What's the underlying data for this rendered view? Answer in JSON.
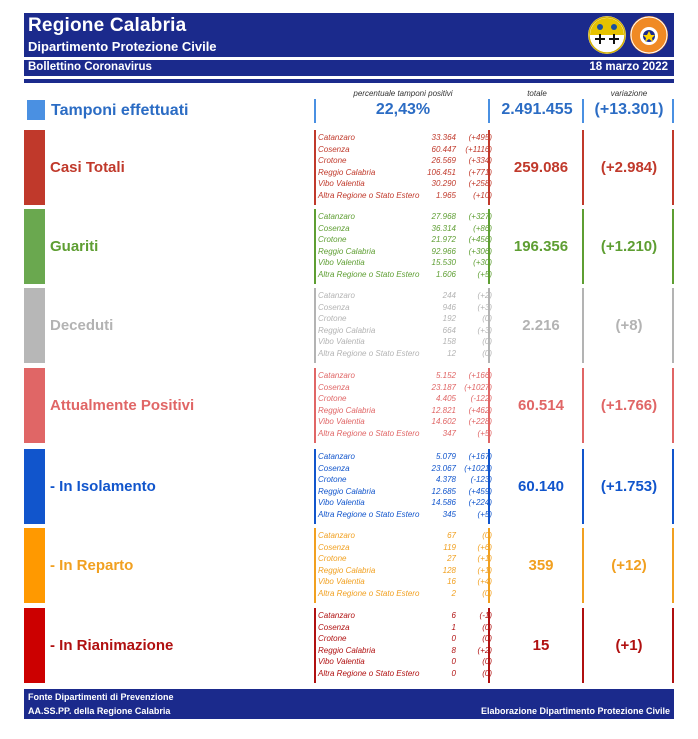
{
  "header": {
    "title": "Regione Calabria",
    "subtitle": "Dipartimento Protezione Civile",
    "bulletin": "Bollettino Coronavirus",
    "date": "18 marzo 2022",
    "logo_text": "PROTEZIONE CIVILE"
  },
  "columns": {
    "pct_label": "percentuale tamponi positivi",
    "total_label": "totale",
    "change_label": "variazione"
  },
  "tamponi": {
    "label": "Tamponi effettuati",
    "pct": "22,43%",
    "total": "2.491.455",
    "change": "(+13.301)"
  },
  "sections": [
    {
      "id": "casi",
      "label": "Casi Totali",
      "color": "#c0392b",
      "box_color": "#c0392b",
      "total": "259.086",
      "change": "(+2.984)",
      "rows": [
        {
          "prov": "Catanzaro",
          "val": "33.364",
          "var": "(+495)"
        },
        {
          "prov": "Cosenza",
          "val": "60.447",
          "var": "(+1116)"
        },
        {
          "prov": "Crotone",
          "val": "26.569",
          "var": "(+334)"
        },
        {
          "prov": "Reggio Calabria",
          "val": "106.451",
          "var": "(+771)"
        },
        {
          "prov": "Vibo Valentia",
          "val": "30.290",
          "var": "(+258)"
        },
        {
          "prov": "Altra Regione o Stato Estero",
          "val": "1.965",
          "var": "(+10)"
        }
      ]
    },
    {
      "id": "guariti",
      "label": "Guariti",
      "color": "#5e9e32",
      "box_color": "#6aa84f",
      "total": "196.356",
      "change": "(+1.210)",
      "rows": [
        {
          "prov": "Catanzaro",
          "val": "27.968",
          "var": "(+327)"
        },
        {
          "prov": "Cosenza",
          "val": "36.314",
          "var": "(+86)"
        },
        {
          "prov": "Crotone",
          "val": "21.972",
          "var": "(+456)"
        },
        {
          "prov": "Reggio Calabria",
          "val": "92.966",
          "var": "(+306)"
        },
        {
          "prov": "Vibo Valentia",
          "val": "15.530",
          "var": "(+30)"
        },
        {
          "prov": "Altra Regione o Stato Estero",
          "val": "1.606",
          "var": "(+5)"
        }
      ]
    },
    {
      "id": "deceduti",
      "label": "Deceduti",
      "color": "#b3b3b3",
      "box_color": "#b7b7b7",
      "total": "2.216",
      "change": "(+8)",
      "rows": [
        {
          "prov": "Catanzaro",
          "val": "244",
          "var": "(+2)"
        },
        {
          "prov": "Cosenza",
          "val": "946",
          "var": "(+3)"
        },
        {
          "prov": "Crotone",
          "val": "192",
          "var": "(0)"
        },
        {
          "prov": "Reggio Calabria",
          "val": "664",
          "var": "(+3)"
        },
        {
          "prov": "Vibo Valentia",
          "val": "158",
          "var": "(0)"
        },
        {
          "prov": "Altra Regione o Stato Estero",
          "val": "12",
          "var": "(0)"
        }
      ]
    },
    {
      "id": "attualmente",
      "label": "Attualmente Positivi",
      "color": "#e06666",
      "box_color": "#e06666",
      "total": "60.514",
      "change": "(+1.766)",
      "rows": [
        {
          "prov": "Catanzaro",
          "val": "5.152",
          "var": "(+166)"
        },
        {
          "prov": "Cosenza",
          "val": "23.187",
          "var": "(+1027)"
        },
        {
          "prov": "Crotone",
          "val": "4.405",
          "var": "(-122)"
        },
        {
          "prov": "Reggio Calabria",
          "val": "12.821",
          "var": "(+462)"
        },
        {
          "prov": "Vibo Valentia",
          "val": "14.602",
          "var": "(+228)"
        },
        {
          "prov": "Altra Regione o Stato Estero",
          "val": "347",
          "var": "(+5)"
        }
      ]
    },
    {
      "id": "isolamento",
      "label": "- In Isolamento",
      "color": "#1155cc",
      "box_color": "#1155cc",
      "total": "60.140",
      "change": "(+1.753)",
      "rows": [
        {
          "prov": "Catanzaro",
          "val": "5.079",
          "var": "(+167)"
        },
        {
          "prov": "Cosenza",
          "val": "23.067",
          "var": "(+1021)"
        },
        {
          "prov": "Crotone",
          "val": "4.378",
          "var": "(-123)"
        },
        {
          "prov": "Reggio Calabria",
          "val": "12.685",
          "var": "(+459)"
        },
        {
          "prov": "Vibo Valentia",
          "val": "14.586",
          "var": "(+224)"
        },
        {
          "prov": "Altra Regione o Stato Estero",
          "val": "345",
          "var": "(+5)"
        }
      ]
    },
    {
      "id": "reparto",
      "label": "- In Reparto",
      "color": "#f1a020",
      "box_color": "#ff9900",
      "total": "359",
      "change": "(+12)",
      "rows": [
        {
          "prov": "Catanzaro",
          "val": "67",
          "var": "(0)"
        },
        {
          "prov": "Cosenza",
          "val": "119",
          "var": "(+6)"
        },
        {
          "prov": "Crotone",
          "val": "27",
          "var": "(+1)"
        },
        {
          "prov": "Reggio Calabria",
          "val": "128",
          "var": "(+1)"
        },
        {
          "prov": "Vibo Valentia",
          "val": "16",
          "var": "(+4)"
        },
        {
          "prov": "Altra Regione o Stato Estero",
          "val": "2",
          "var": "(0)"
        }
      ]
    },
    {
      "id": "rianimazione",
      "label": "- In Rianimazione",
      "color": "#b01010",
      "box_color": "#cc0000",
      "total": "15",
      "change": "(+1)",
      "rows": [
        {
          "prov": "Catanzaro",
          "val": "6",
          "var": "(-1)"
        },
        {
          "prov": "Cosenza",
          "val": "1",
          "var": "(0)"
        },
        {
          "prov": "Crotone",
          "val": "0",
          "var": "(0)"
        },
        {
          "prov": "Reggio Calabria",
          "val": "8",
          "var": "(+2)"
        },
        {
          "prov": "Vibo Valentia",
          "val": "0",
          "var": "(0)"
        },
        {
          "prov": "Altra Regione o Stato Estero",
          "val": "0",
          "var": "(0)"
        }
      ]
    }
  ],
  "footer": {
    "source_line1": "Fonte Dipartimenti di Prevenzione",
    "source_line2": "AA.SS.PP.  della Regione Calabria",
    "credit": "Elaborazione Dipartimento Protezione Civile"
  }
}
